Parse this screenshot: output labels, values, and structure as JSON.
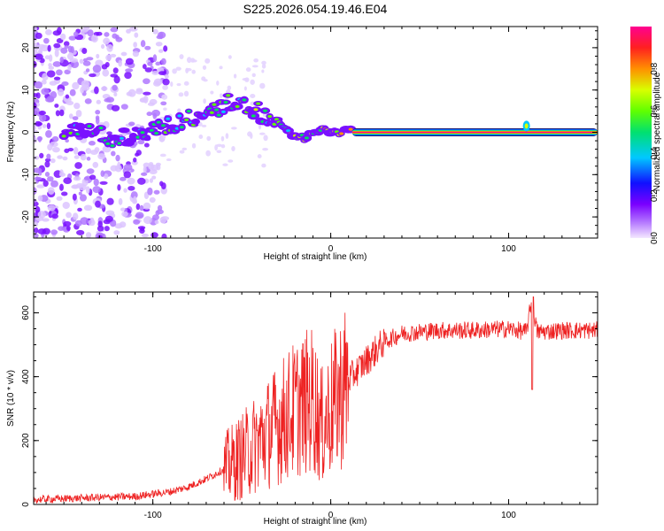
{
  "title": "S225.2026.054.19.46.E04",
  "chart_data": [
    {
      "type": "heatmap",
      "xlabel": "Height of straight line (km)",
      "ylabel": "Frequency (Hz)",
      "xlim": [
        -167,
        150
      ],
      "ylim": [
        -25,
        25
      ],
      "xticks": [
        -100,
        0,
        100
      ],
      "yticks": [
        -20,
        -10,
        0,
        10,
        20
      ],
      "colorbar": {
        "label": "Normalized spectral amplitude",
        "range": [
          0.0,
          1.0
        ],
        "ticks": [
          "0.0",
          "0.2",
          "0.4",
          "0.6",
          "0.8"
        ],
        "colormap": [
          "#f0e0ff",
          "#8a00ff",
          "#1010ff",
          "#00c8ff",
          "#00e060",
          "#60ff00",
          "#d0ff00",
          "#ff9000",
          "#ff2020",
          "#ff0090"
        ]
      },
      "ridge": [
        {
          "x": -145,
          "y": 0.5,
          "amp": 0.35
        },
        {
          "x": -120,
          "y": -1.5,
          "amp": 0.3
        },
        {
          "x": -100,
          "y": 0.5,
          "amp": 0.35
        },
        {
          "x": -85,
          "y": 2.5,
          "amp": 0.4
        },
        {
          "x": -70,
          "y": 4.5,
          "amp": 0.4
        },
        {
          "x": -55,
          "y": 7.5,
          "amp": 0.45
        },
        {
          "x": -45,
          "y": 6.0,
          "amp": 0.45
        },
        {
          "x": -35,
          "y": 3.5,
          "amp": 0.45
        },
        {
          "x": -25,
          "y": 0.5,
          "amp": 0.5
        },
        {
          "x": -15,
          "y": -1.5,
          "amp": 0.55
        },
        {
          "x": -5,
          "y": 0.5,
          "amp": 0.6
        },
        {
          "x": 10,
          "y": 0.0,
          "amp": 0.8
        },
        {
          "x": 150,
          "y": 0.0,
          "amp": 0.9
        }
      ]
    },
    {
      "type": "line",
      "xlabel": "Height of straight line (km)",
      "ylabel": "SNR (10 * v/v)",
      "xlim": [
        -167,
        150
      ],
      "ylim": [
        0,
        665
      ],
      "xticks": [
        -100,
        0,
        100
      ],
      "yticks": [
        0,
        200,
        400,
        600
      ],
      "series": [
        {
          "name": "SNR",
          "color": "#ee2222",
          "x": [
            -167,
            -140,
            -110,
            -90,
            -80,
            -70,
            -60,
            -50,
            -40,
            -30,
            -20,
            -10,
            -5,
            0,
            10,
            20,
            30,
            40,
            60,
            80,
            100,
            110,
            113,
            116,
            130,
            150
          ],
          "y": [
            15,
            20,
            25,
            40,
            55,
            80,
            110,
            150,
            200,
            250,
            300,
            330,
            240,
            300,
            390,
            450,
            510,
            535,
            545,
            545,
            550,
            540,
            640,
            540,
            545,
            545
          ]
        }
      ]
    }
  ]
}
